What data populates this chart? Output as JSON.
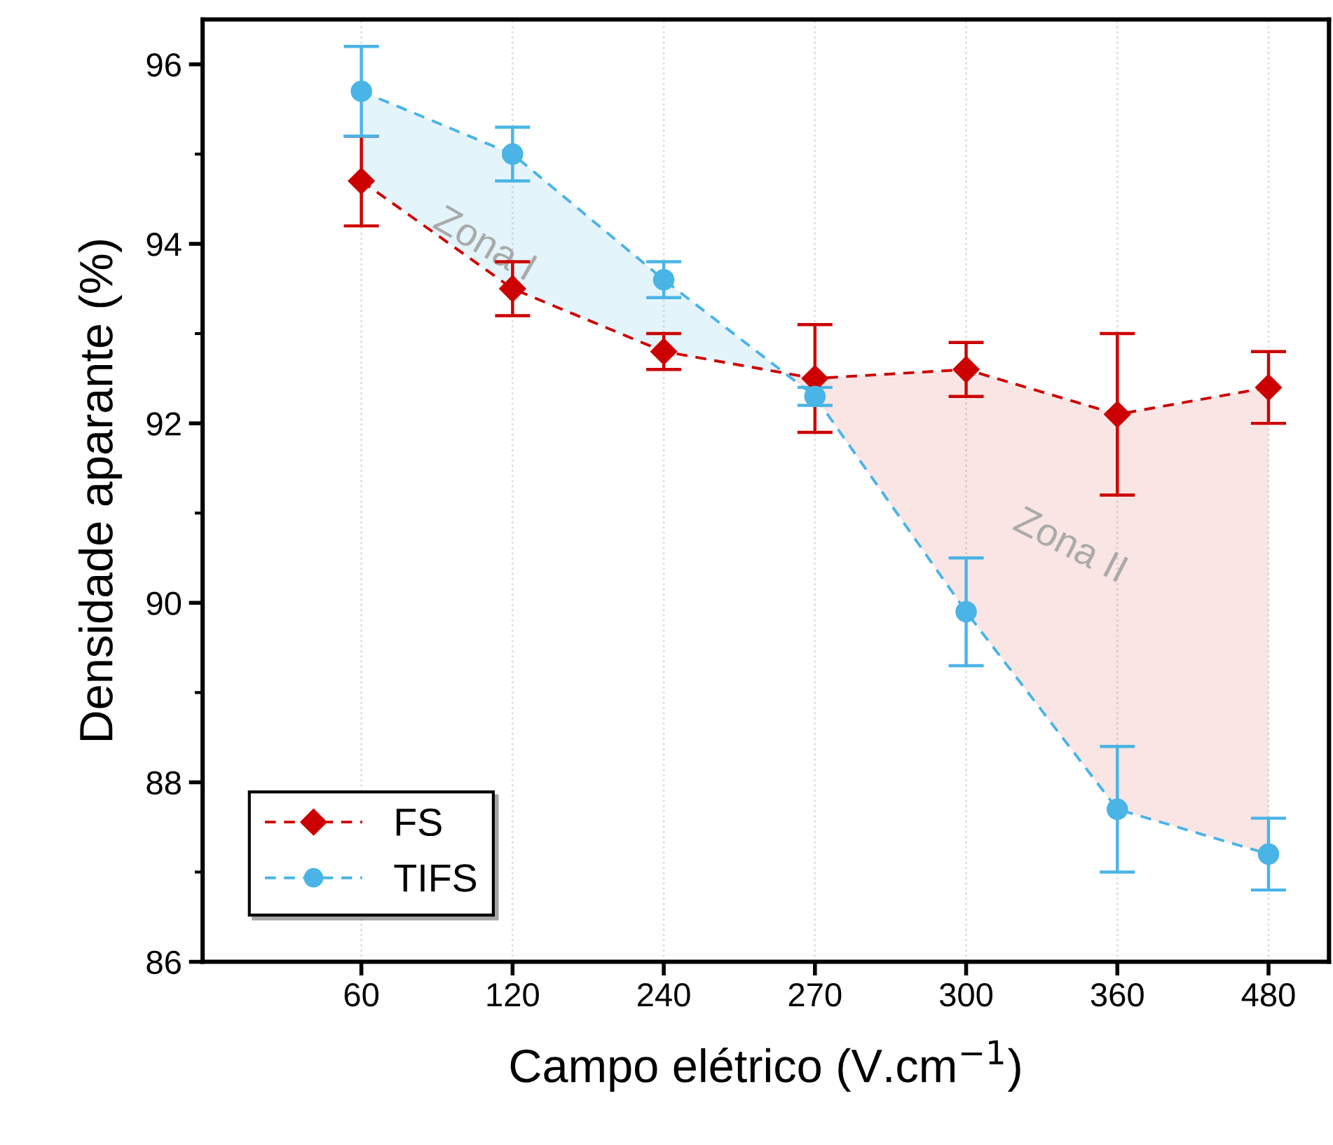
{
  "chart_data": {
    "type": "line",
    "xlabel": "Campo elétrico (V.cm$^{−1}$)",
    "ylabel": "Densidade aparante (%)",
    "categories": [
      "60",
      "120",
      "240",
      "270",
      "300",
      "360",
      "480"
    ],
    "series": [
      {
        "name": "FS",
        "color": "#cc0000",
        "marker": "diamond",
        "values": [
          94.7,
          93.5,
          92.8,
          92.5,
          92.6,
          92.1,
          92.4
        ],
        "errors": [
          0.5,
          0.3,
          0.2,
          0.6,
          0.3,
          0.9,
          0.4
        ]
      },
      {
        "name": "TIFS",
        "color": "#4ab4e6",
        "marker": "circle",
        "values": [
          95.7,
          95.0,
          93.6,
          92.3,
          89.9,
          87.7,
          87.2
        ],
        "errors": [
          0.5,
          0.3,
          0.2,
          0.1,
          0.6,
          0.7,
          0.4
        ]
      }
    ],
    "ylim": [
      86,
      96.5
    ],
    "yticks": [
      86,
      88,
      90,
      92,
      94,
      96
    ],
    "line_style": "dashed",
    "grid": "x",
    "legend": "bottom left",
    "annotations": [
      "Zona I",
      "Zona II"
    ]
  }
}
